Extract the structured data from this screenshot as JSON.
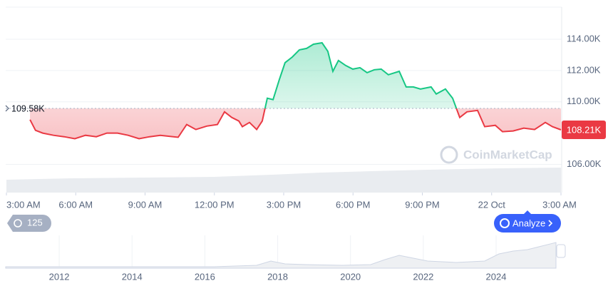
{
  "chart_data": {
    "type": "line",
    "xlim": [
      0,
      24
    ],
    "ylim": [
      104.2,
      116.05
    ],
    "xticks": [
      {
        "value": 0,
        "label": "3:00 AM"
      },
      {
        "value": 3,
        "label": "6:00 AM"
      },
      {
        "value": 6,
        "label": "9:00 AM"
      },
      {
        "value": 9,
        "label": "12:00 PM"
      },
      {
        "value": 12,
        "label": "3:00 PM"
      },
      {
        "value": 15,
        "label": "6:00 PM"
      },
      {
        "value": 18,
        "label": "9:00 PM"
      },
      {
        "value": 21,
        "label": "22 Oct"
      },
      {
        "value": 24,
        "label": "3:00 AM"
      }
    ],
    "yticks": [
      {
        "value": 106,
        "label": "106.00K"
      },
      {
        "value": 110,
        "label": "110.00K"
      },
      {
        "value": 112,
        "label": "112.00K"
      },
      {
        "value": 114,
        "label": "114.00K"
      }
    ],
    "grid": true,
    "baseline": {
      "value": 109.58,
      "label": "109.58K"
    },
    "current": {
      "value": 108.21,
      "label": "108.21K"
    },
    "up_color": "#16c784",
    "down_color": "#ea3943",
    "x": [
      1.02,
      1.26,
      1.57,
      2.04,
      2.5,
      2.96,
      3.42,
      3.89,
      4.35,
      4.81,
      5.27,
      5.74,
      6.2,
      6.66,
      7.43,
      7.8,
      8.2,
      8.67,
      9.13,
      9.44,
      9.75,
      10.06,
      10.21,
      10.52,
      10.83,
      11.07,
      11.29,
      11.54,
      11.81,
      12.06,
      12.37,
      12.68,
      12.99,
      13.29,
      13.66,
      13.91,
      14.13,
      14.37,
      14.68,
      14.99,
      15.3,
      15.61,
      15.92,
      16.22,
      16.53,
      17.0,
      17.3,
      17.61,
      17.92,
      18.38,
      18.6,
      19.0,
      19.31,
      19.62,
      19.93,
      20.39,
      20.7,
      21.16,
      21.47,
      21.93,
      22.39,
      22.86,
      23.32,
      23.63,
      24.0
    ],
    "values": [
      108.86,
      108.18,
      108.0,
      107.86,
      107.77,
      107.64,
      107.86,
      107.77,
      108.0,
      108.0,
      107.86,
      107.64,
      107.77,
      107.86,
      107.73,
      108.55,
      108.23,
      108.45,
      108.55,
      109.36,
      109.0,
      108.77,
      108.41,
      108.68,
      108.23,
      108.77,
      110.23,
      110.14,
      111.41,
      112.5,
      112.86,
      113.32,
      113.41,
      113.68,
      113.77,
      113.23,
      111.95,
      112.64,
      112.32,
      112.09,
      112.18,
      111.86,
      112.05,
      112.09,
      111.73,
      111.95,
      110.95,
      110.95,
      110.82,
      110.95,
      110.5,
      110.82,
      110.23,
      109.0,
      109.36,
      109.45,
      108.41,
      108.5,
      108.09,
      108.14,
      108.32,
      108.23,
      108.68,
      108.41,
      108.21
    ],
    "navigator": {
      "xlim": [
        2010.53,
        2025.84
      ],
      "xticks": [
        2012,
        2014,
        2016,
        2018,
        2020,
        2022,
        2024
      ]
    }
  },
  "ui": {
    "watermark": "CoinMarketCap",
    "history_badge": "125",
    "analyze_button": "Analyze"
  }
}
